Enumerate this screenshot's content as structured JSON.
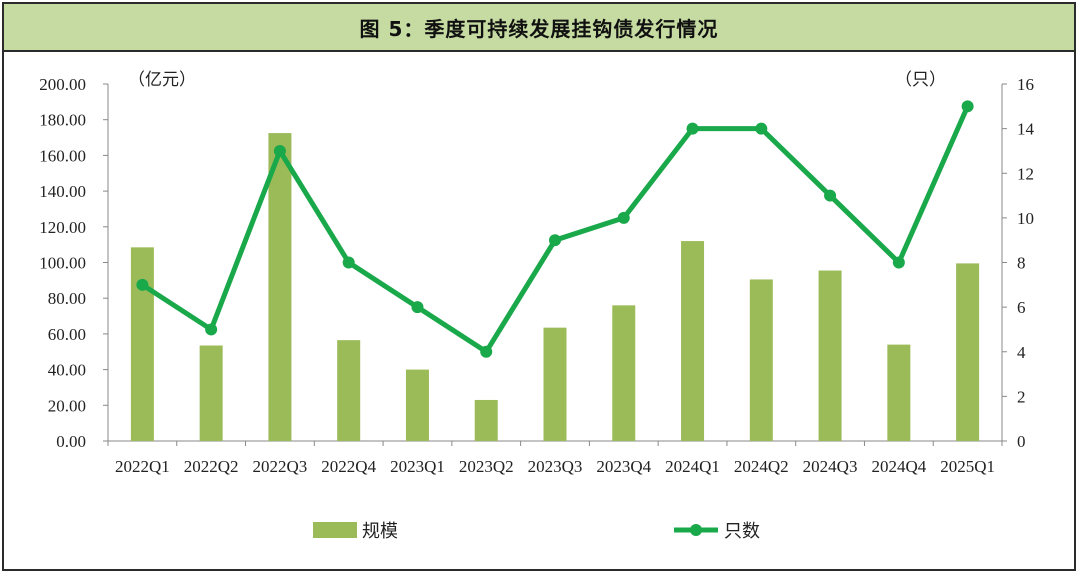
{
  "title": "图 5：季度可持续发展挂钩债发行情况",
  "chart_data": {
    "type": "bar+line",
    "categories": [
      "2022Q1",
      "2022Q2",
      "2022Q3",
      "2022Q4",
      "2023Q1",
      "2023Q2",
      "2023Q3",
      "2023Q4",
      "2024Q1",
      "2024Q2",
      "2024Q3",
      "2024Q4",
      "2025Q1"
    ],
    "series": [
      {
        "name": "规模",
        "type": "bar",
        "axis": "left",
        "color": "#9bbb59",
        "values": [
          108.5,
          53.5,
          172.5,
          56.5,
          40.0,
          23.0,
          63.5,
          76.0,
          112.0,
          90.5,
          95.5,
          54.0,
          99.5
        ]
      },
      {
        "name": "只数",
        "type": "line",
        "axis": "right",
        "color": "#19a84a",
        "values": [
          7,
          5,
          13,
          8,
          6,
          4,
          9,
          10,
          14,
          14,
          11,
          8,
          15
        ]
      }
    ],
    "left_axis": {
      "unit": "（亿元）",
      "min": 0,
      "max": 200,
      "step": 20,
      "ticks": [
        "0.00",
        "20.00",
        "40.00",
        "60.00",
        "80.00",
        "100.00",
        "120.00",
        "140.00",
        "160.00",
        "180.00",
        "200.00"
      ]
    },
    "right_axis": {
      "unit": "（只）",
      "min": 0,
      "max": 16,
      "step": 2,
      "ticks": [
        "0",
        "2",
        "4",
        "6",
        "8",
        "10",
        "12",
        "14",
        "16"
      ]
    },
    "legend_position": "bottom",
    "grid": false
  }
}
